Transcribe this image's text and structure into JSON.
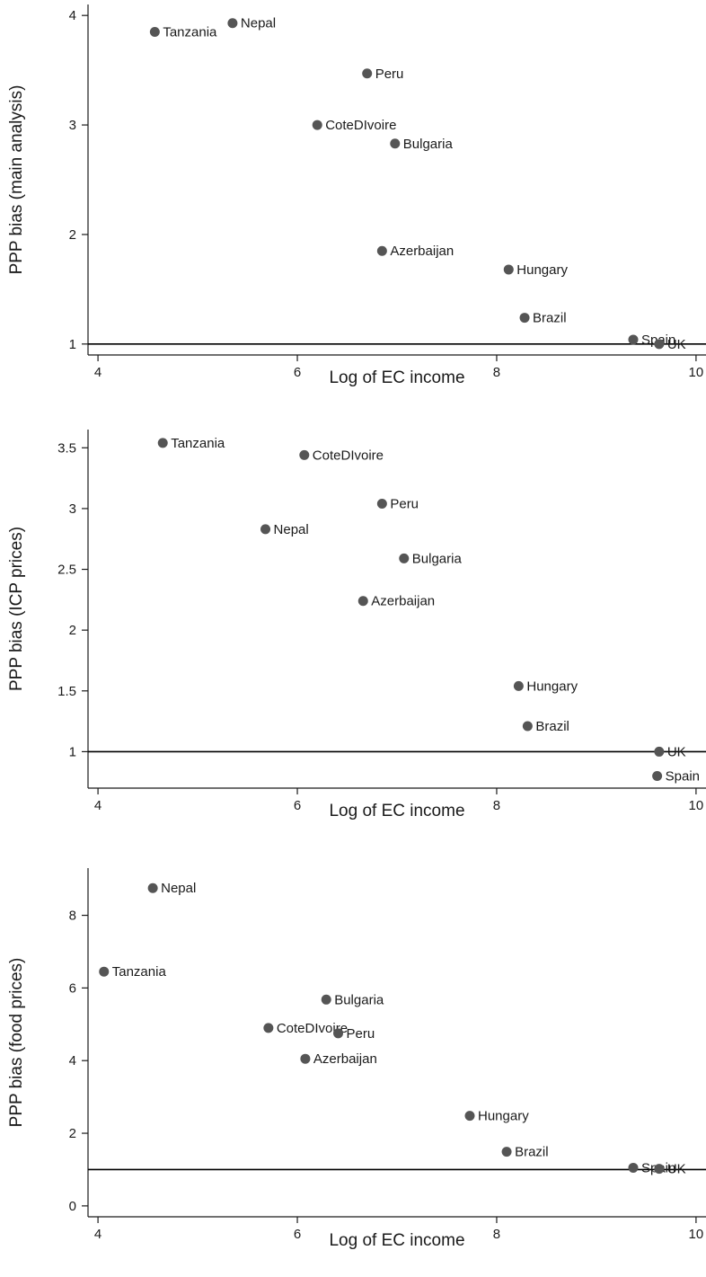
{
  "chart_data": [
    {
      "type": "scatter",
      "title": "",
      "xlabel": "Log of EC income",
      "ylabel": "PPP bias (main analysis)",
      "xlim": [
        3.9,
        10.1
      ],
      "ylim": [
        0.9,
        4.1
      ],
      "xticks": [
        4,
        6,
        8,
        10
      ],
      "yticks": [
        1,
        2,
        3,
        4
      ],
      "reference_line": 1,
      "grid": false,
      "points": [
        {
          "label": "Tanzania",
          "x": 4.57,
          "y": 3.85
        },
        {
          "label": "Nepal",
          "x": 5.35,
          "y": 3.93
        },
        {
          "label": "Peru",
          "x": 6.7,
          "y": 3.47
        },
        {
          "label": "CoteDIvoire",
          "x": 6.2,
          "y": 3.0
        },
        {
          "label": "Bulgaria",
          "x": 6.98,
          "y": 2.83
        },
        {
          "label": "Azerbaijan",
          "x": 6.85,
          "y": 1.85
        },
        {
          "label": "Hungary",
          "x": 8.12,
          "y": 1.68
        },
        {
          "label": "Brazil",
          "x": 8.28,
          "y": 1.24
        },
        {
          "label": "Spain",
          "x": 9.37,
          "y": 1.04
        },
        {
          "label": "UK",
          "x": 9.63,
          "y": 1.0
        }
      ]
    },
    {
      "type": "scatter",
      "title": "",
      "xlabel": "Log of EC income",
      "ylabel": "PPP bias (ICP prices)",
      "xlim": [
        3.9,
        10.1
      ],
      "ylim": [
        0.7,
        3.65
      ],
      "xticks": [
        4,
        6,
        8,
        10
      ],
      "yticks": [
        1,
        1.5,
        2,
        2.5,
        3,
        3.5
      ],
      "reference_line": 1,
      "grid": false,
      "points": [
        {
          "label": "Tanzania",
          "x": 4.65,
          "y": 3.54
        },
        {
          "label": "CoteDIvoire",
          "x": 6.07,
          "y": 3.44
        },
        {
          "label": "Peru",
          "x": 6.85,
          "y": 3.04
        },
        {
          "label": "Nepal",
          "x": 5.68,
          "y": 2.83
        },
        {
          "label": "Bulgaria",
          "x": 7.07,
          "y": 2.59
        },
        {
          "label": "Azerbaijan",
          "x": 6.66,
          "y": 2.24
        },
        {
          "label": "Hungary",
          "x": 8.22,
          "y": 1.54
        },
        {
          "label": "Brazil",
          "x": 8.31,
          "y": 1.21
        },
        {
          "label": "UK",
          "x": 9.63,
          "y": 1.0
        },
        {
          "label": "Spain",
          "x": 9.61,
          "y": 0.8
        }
      ]
    },
    {
      "type": "scatter",
      "title": "",
      "xlabel": "Log of EC income",
      "ylabel": "PPP bias (food prices)",
      "xlim": [
        3.9,
        10.1
      ],
      "ylim": [
        -0.3,
        9.3
      ],
      "xticks": [
        4,
        6,
        8,
        10
      ],
      "yticks": [
        0,
        2,
        4,
        6,
        8
      ],
      "reference_line": 1,
      "grid": false,
      "points": [
        {
          "label": "Nepal",
          "x": 4.55,
          "y": 8.75
        },
        {
          "label": "Tanzania",
          "x": 4.06,
          "y": 6.45
        },
        {
          "label": "Bulgaria",
          "x": 6.29,
          "y": 5.68
        },
        {
          "label": "CoteDIvoire",
          "x": 5.71,
          "y": 4.9
        },
        {
          "label": "Peru",
          "x": 6.41,
          "y": 4.75
        },
        {
          "label": "Azerbaijan",
          "x": 6.08,
          "y": 4.05
        },
        {
          "label": "Hungary",
          "x": 7.73,
          "y": 2.48
        },
        {
          "label": "Brazil",
          "x": 8.1,
          "y": 1.49
        },
        {
          "label": "Spain",
          "x": 9.37,
          "y": 1.05
        },
        {
          "label": "UK",
          "x": 9.63,
          "y": 1.02
        }
      ]
    }
  ],
  "colors": {
    "marker": "#555555",
    "axis": "#1a1a1a",
    "reference_line": "#000000"
  }
}
